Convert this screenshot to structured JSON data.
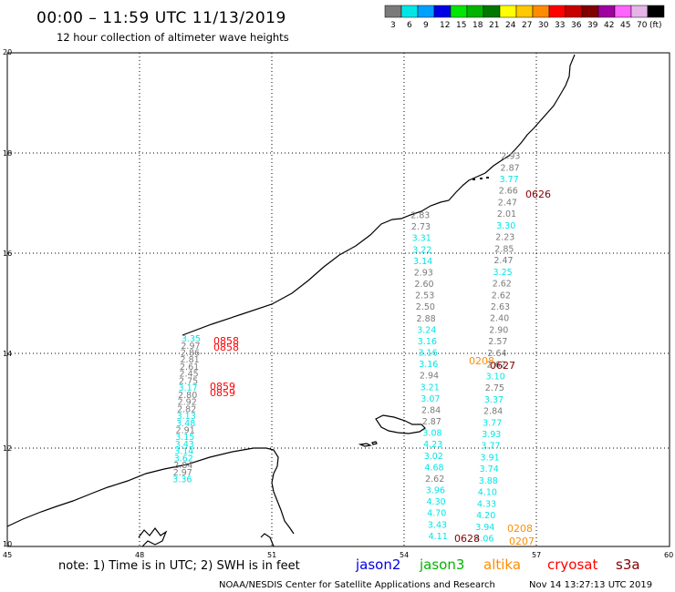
{
  "header": {
    "title": "00:00 – 11:59 UTC 11/13/2019",
    "subtitle": "12 hour collection of altimeter wave heights"
  },
  "colorbar": {
    "colors": [
      "#7a7a7a",
      "#00e6e6",
      "#00a0ff",
      "#0000e6",
      "#00e600",
      "#00b400",
      "#007800",
      "#ffff00",
      "#ffc800",
      "#ff8c00",
      "#ff0000",
      "#c80000",
      "#820000",
      "#a000a0",
      "#ff64ff",
      "#e6b4e6",
      "#000000"
    ],
    "labels": [
      "3",
      "6",
      "9",
      "12",
      "15",
      "18",
      "21",
      "24",
      "27",
      "30",
      "33",
      "36",
      "39",
      "42",
      "45",
      "70",
      "(ft)"
    ]
  },
  "axes": {
    "lat_labels": [
      "20",
      "18",
      "16",
      "14",
      "12",
      "10"
    ],
    "lon_labels": [
      "45",
      "48",
      "51",
      "54",
      "57",
      "60"
    ]
  },
  "tracks": {
    "left": {
      "values": [
        {
          "v": "3.35",
          "c": "#00e6e6"
        },
        {
          "v": "2.97",
          "c": "#7a7a7a"
        },
        {
          "v": "2.86",
          "c": "#7a7a7a"
        },
        {
          "v": "2.81",
          "c": "#7a7a7a"
        },
        {
          "v": "2.61",
          "c": "#7a7a7a"
        },
        {
          "v": "2.45",
          "c": "#7a7a7a"
        },
        {
          "v": "2.75",
          "c": "#7a7a7a"
        },
        {
          "v": "3.17",
          "c": "#00e6e6"
        },
        {
          "v": "2.80",
          "c": "#7a7a7a"
        },
        {
          "v": "2.92",
          "c": "#7a7a7a"
        },
        {
          "v": "2.82",
          "c": "#7a7a7a"
        },
        {
          "v": "3.13",
          "c": "#00e6e6"
        },
        {
          "v": "3.48",
          "c": "#00e6e6"
        },
        {
          "v": "2.91",
          "c": "#7a7a7a"
        },
        {
          "v": "3.15",
          "c": "#00e6e6"
        },
        {
          "v": "3.43",
          "c": "#00e6e6"
        },
        {
          "v": "3.14",
          "c": "#00e6e6"
        },
        {
          "v": "3.62",
          "c": "#00e6e6"
        },
        {
          "v": "2.84",
          "c": "#7a7a7a"
        },
        {
          "v": "2.97",
          "c": "#7a7a7a"
        },
        {
          "v": "3.36",
          "c": "#00e6e6"
        }
      ],
      "times": [
        "0858",
        "0858",
        "0859",
        "0859"
      ]
    },
    "center": {
      "values": [
        {
          "v": "2.83",
          "c": "#7a7a7a"
        },
        {
          "v": "2.73",
          "c": "#7a7a7a"
        },
        {
          "v": "3.31",
          "c": "#00e6e6"
        },
        {
          "v": "3.22",
          "c": "#00e6e6"
        },
        {
          "v": "3.14",
          "c": "#00e6e6"
        },
        {
          "v": "2.93",
          "c": "#7a7a7a"
        },
        {
          "v": "2.60",
          "c": "#7a7a7a"
        },
        {
          "v": "2.53",
          "c": "#7a7a7a"
        },
        {
          "v": "2.50",
          "c": "#7a7a7a"
        },
        {
          "v": "2.88",
          "c": "#7a7a7a"
        },
        {
          "v": "3.24",
          "c": "#00e6e6"
        },
        {
          "v": "3.16",
          "c": "#00e6e6"
        },
        {
          "v": "3.16",
          "c": "#00e6e6"
        },
        {
          "v": "3.16",
          "c": "#00e6e6"
        },
        {
          "v": "2.94",
          "c": "#7a7a7a"
        },
        {
          "v": "3.21",
          "c": "#00e6e6"
        },
        {
          "v": "3.07",
          "c": "#00e6e6"
        },
        {
          "v": "2.84",
          "c": "#7a7a7a"
        },
        {
          "v": "2.87",
          "c": "#7a7a7a"
        },
        {
          "v": "3.08",
          "c": "#00e6e6"
        },
        {
          "v": "4.23",
          "c": "#00e6e6"
        },
        {
          "v": "3.02",
          "c": "#00e6e6"
        },
        {
          "v": "4.68",
          "c": "#00e6e6"
        },
        {
          "v": "2.62",
          "c": "#7a7a7a"
        },
        {
          "v": "3.96",
          "c": "#00e6e6"
        },
        {
          "v": "4.30",
          "c": "#00e6e6"
        },
        {
          "v": "4.70",
          "c": "#00e6e6"
        },
        {
          "v": "3.43",
          "c": "#00e6e6"
        },
        {
          "v": "4.11",
          "c": "#00e6e6"
        }
      ]
    },
    "right": {
      "values": [
        {
          "v": "2.93",
          "c": "#7a7a7a"
        },
        {
          "v": "2.87",
          "c": "#7a7a7a"
        },
        {
          "v": "3.77",
          "c": "#00e6e6"
        },
        {
          "v": "2.66",
          "c": "#7a7a7a"
        },
        {
          "v": "2.47",
          "c": "#7a7a7a"
        },
        {
          "v": "2.01",
          "c": "#7a7a7a"
        },
        {
          "v": "3.30",
          "c": "#00e6e6"
        },
        {
          "v": "2.23",
          "c": "#7a7a7a"
        },
        {
          "v": "2.85",
          "c": "#7a7a7a"
        },
        {
          "v": "2.47",
          "c": "#7a7a7a"
        },
        {
          "v": "3.25",
          "c": "#00e6e6"
        },
        {
          "v": "2.62",
          "c": "#7a7a7a"
        },
        {
          "v": "2.62",
          "c": "#7a7a7a"
        },
        {
          "v": "2.63",
          "c": "#7a7a7a"
        },
        {
          "v": "2.40",
          "c": "#7a7a7a"
        },
        {
          "v": "2.90",
          "c": "#7a7a7a"
        },
        {
          "v": "2.57",
          "c": "#7a7a7a"
        },
        {
          "v": "2.64",
          "c": "#7a7a7a"
        },
        {
          "v": "2.62",
          "c": "#7a7a7a"
        },
        {
          "v": "3.10",
          "c": "#00e6e6"
        },
        {
          "v": "2.75",
          "c": "#7a7a7a"
        },
        {
          "v": "3.37",
          "c": "#00e6e6"
        },
        {
          "v": "2.84",
          "c": "#7a7a7a"
        },
        {
          "v": "3.77",
          "c": "#00e6e6"
        },
        {
          "v": "3.93",
          "c": "#00e6e6"
        },
        {
          "v": "3.77",
          "c": "#00e6e6"
        },
        {
          "v": "3.91",
          "c": "#00e6e6"
        },
        {
          "v": "3.74",
          "c": "#00e6e6"
        },
        {
          "v": "3.88",
          "c": "#00e6e6"
        },
        {
          "v": "4.10",
          "c": "#00e6e6"
        },
        {
          "v": "4.33",
          "c": "#00e6e6"
        },
        {
          "v": "4.20",
          "c": "#00e6e6"
        },
        {
          "v": "3.94",
          "c": "#00e6e6"
        },
        {
          "v": "4.06",
          "c": "#00e6e6"
        }
      ]
    }
  },
  "time_labels": {
    "t0626": {
      "text": "0626",
      "color": "#820000"
    },
    "t0627": {
      "text": "0627",
      "color": "#820000"
    },
    "t0628": {
      "text": "0628",
      "color": "#820000"
    },
    "t0208a": {
      "text": "0208",
      "color": "#ff8c00"
    },
    "t0208b": {
      "text": "0208",
      "color": "#ff8c00"
    },
    "t0207": {
      "text": "0207",
      "color": "#ff8c00"
    },
    "t0858": {
      "text": "0858",
      "color": "#ff0000"
    },
    "t0859": {
      "text": "0859",
      "color": "#ff0000"
    }
  },
  "footer": {
    "note": "note:  1) Time is in UTC;  2) SWH is in feet",
    "legend": [
      {
        "name": "jason2",
        "color": "#0000e6"
      },
      {
        "name": "jason3",
        "color": "#00b400"
      },
      {
        "name": "altika",
        "color": "#ff8c00"
      },
      {
        "name": "cryosat",
        "color": "#ff0000"
      },
      {
        "name": "s3a",
        "color": "#820000"
      }
    ],
    "credit": "NOAA/NESDIS Center for Satellite Applications and Research",
    "timestamp": "Nov 14 13:27:13 UTC 2019"
  }
}
